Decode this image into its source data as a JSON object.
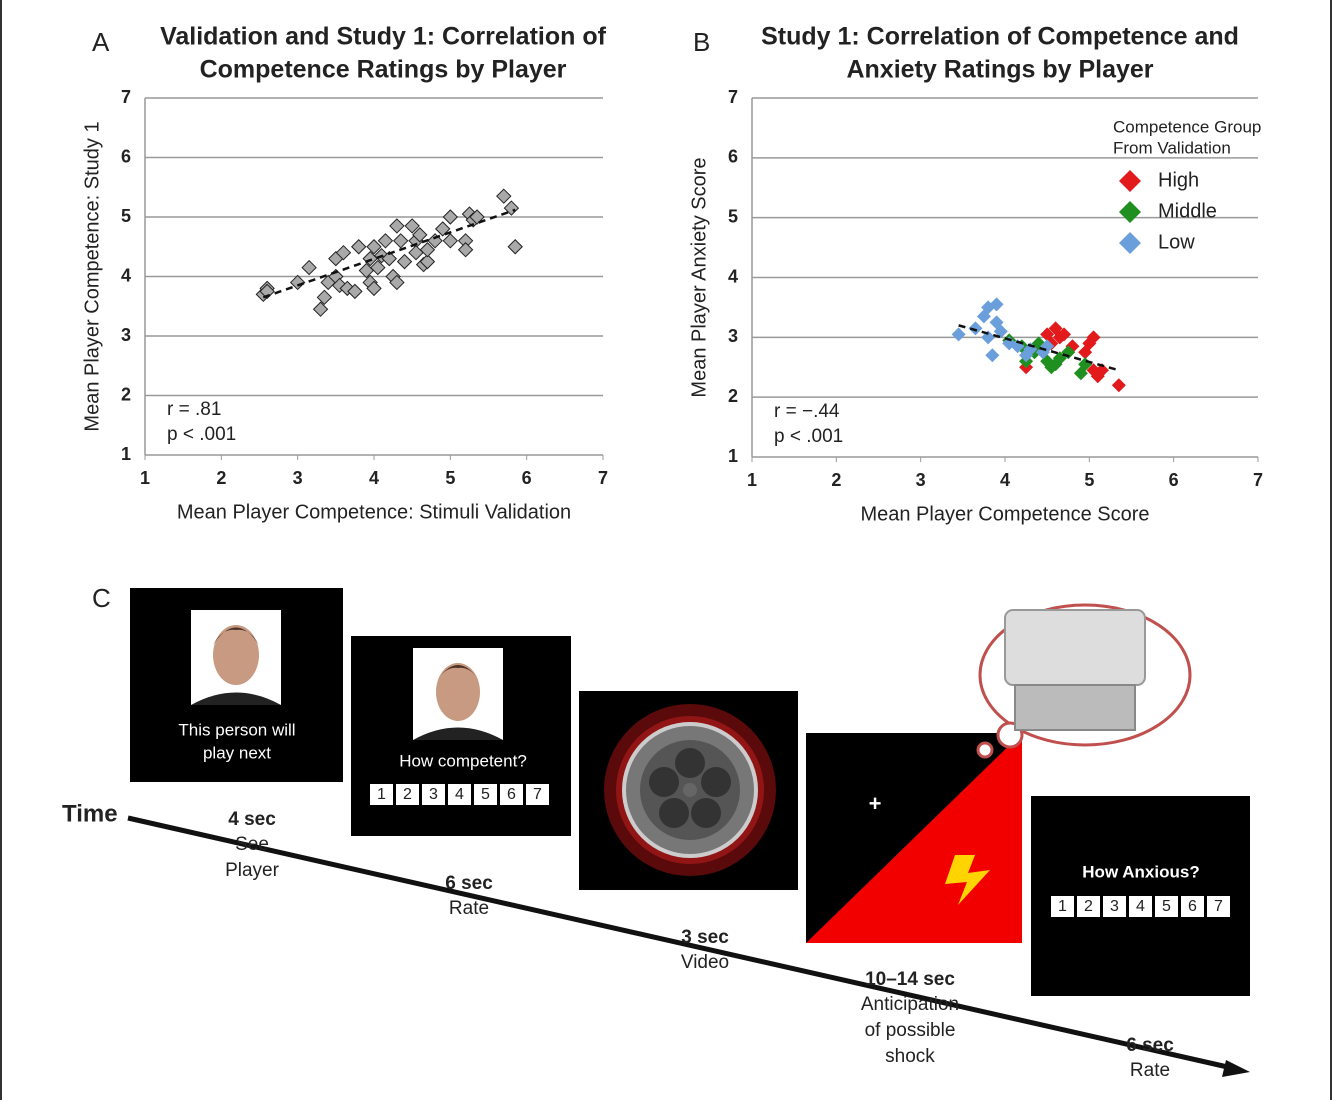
{
  "chart_data": [
    {
      "type": "scatter",
      "panel": "A",
      "title": [
        "Validation and Study 1: Correlation of",
        "Competence Ratings by Player"
      ],
      "xlabel": "Mean Player Competence: Stimuli Validation",
      "ylabel": "Mean Player Competence: Study 1",
      "xlim": [
        1,
        7
      ],
      "ylim": [
        1,
        7
      ],
      "xticks": [
        1,
        2,
        3,
        4,
        5,
        6,
        7
      ],
      "yticks": [
        1,
        2,
        3,
        4,
        5,
        6,
        7
      ],
      "grid": true,
      "color": "#a9a9a9",
      "x": [
        2.55,
        2.6,
        2.6,
        3.0,
        3.15,
        3.3,
        3.35,
        3.4,
        3.5,
        3.5,
        3.55,
        3.6,
        3.65,
        3.75,
        3.8,
        3.9,
        3.95,
        3.95,
        4.0,
        4.0,
        4.05,
        4.1,
        4.15,
        4.2,
        4.25,
        4.3,
        4.3,
        4.35,
        4.4,
        4.5,
        4.55,
        4.55,
        4.6,
        4.65,
        4.7,
        4.7,
        4.8,
        4.9,
        5.0,
        5.0,
        5.2,
        5.2,
        5.25,
        5.3,
        5.35,
        5.7,
        5.8,
        5.85
      ],
      "values": [
        3.7,
        3.8,
        3.75,
        3.9,
        4.15,
        3.45,
        3.65,
        3.9,
        4.0,
        4.3,
        3.85,
        4.4,
        3.8,
        3.75,
        4.5,
        4.1,
        4.3,
        3.9,
        4.5,
        3.8,
        4.15,
        4.35,
        4.6,
        4.3,
        4.0,
        4.85,
        3.9,
        4.6,
        4.25,
        4.85,
        4.6,
        4.4,
        4.7,
        4.2,
        4.25,
        4.45,
        4.6,
        4.8,
        5.0,
        4.6,
        4.6,
        4.45,
        5.05,
        4.95,
        5.0,
        5.35,
        5.15,
        4.5
      ],
      "trend": {
        "x": [
          2.55,
          5.85
        ],
        "y": [
          3.65,
          5.12
        ]
      },
      "annotations": [
        "r = .81",
        "p < .001"
      ]
    },
    {
      "type": "scatter",
      "panel": "B",
      "title": [
        "Study 1: Correlation of Competence and",
        "Anxiety Ratings by Player"
      ],
      "xlabel": "Mean Player Competence Score",
      "ylabel": "Mean Player Anxiety Score",
      "xlim": [
        1,
        7
      ],
      "ylim": [
        1,
        7
      ],
      "xticks": [
        1,
        2,
        3,
        4,
        5,
        6,
        7
      ],
      "yticks": [
        1,
        2,
        3,
        4,
        5,
        6,
        7
      ],
      "grid": true,
      "legend_title": [
        "Competence Group",
        "From Validation"
      ],
      "legend": "upper right",
      "series": [
        {
          "name": "High",
          "color": "#e31a1c",
          "x": [
            4.25,
            4.5,
            4.55,
            4.6,
            4.65,
            4.7,
            4.8,
            4.95,
            5.0,
            5.05,
            5.05,
            5.1,
            5.15,
            5.35
          ],
          "values": [
            2.5,
            3.05,
            2.9,
            3.15,
            3.0,
            3.05,
            2.85,
            2.75,
            2.9,
            3.0,
            2.45,
            2.35,
            2.45,
            2.2
          ]
        },
        {
          "name": "Middle",
          "color": "#1f8f1f",
          "x": [
            4.05,
            4.2,
            4.25,
            4.35,
            4.4,
            4.5,
            4.55,
            4.6,
            4.65,
            4.75,
            4.9,
            4.95
          ],
          "values": [
            2.95,
            2.85,
            2.6,
            2.75,
            2.9,
            2.6,
            2.5,
            2.55,
            2.65,
            2.75,
            2.4,
            2.55
          ]
        },
        {
          "name": "Low",
          "color": "#6a9fdc",
          "x": [
            3.45,
            3.65,
            3.75,
            3.8,
            3.8,
            3.9,
            3.9,
            3.85,
            3.95,
            4.05,
            4.15,
            4.25,
            4.3,
            4.5,
            4.45
          ],
          "values": [
            3.05,
            3.15,
            3.35,
            3.5,
            3.0,
            3.55,
            3.25,
            2.7,
            3.1,
            2.9,
            2.85,
            2.7,
            2.8,
            2.85,
            2.75
          ]
        }
      ],
      "trend": {
        "x": [
          3.45,
          5.35
        ],
        "y": [
          3.2,
          2.45
        ]
      },
      "annotations": [
        "r = −.44",
        "p < .001"
      ]
    }
  ],
  "diagram": {
    "panel": "C",
    "timeline_label": "Time",
    "fixation": "+",
    "screens": [
      {
        "text": [
          "This person will",
          "play next"
        ]
      },
      {
        "text": [
          "How competent?"
        ],
        "scale": [
          1,
          2,
          3,
          4,
          5,
          6,
          7
        ]
      },
      {
        "text": [
          "How Anxious?"
        ],
        "scale": [
          1,
          2,
          3,
          4,
          5,
          6,
          7
        ]
      }
    ],
    "steps": [
      {
        "duration": "4 sec",
        "desc": [
          "See",
          "Player"
        ]
      },
      {
        "duration": "6 sec",
        "desc": [
          "Rate"
        ]
      },
      {
        "duration": "3 sec",
        "desc": [
          "Video"
        ]
      },
      {
        "duration": "10–14 sec",
        "desc": [
          "Anticipation",
          "of possible",
          "shock"
        ]
      },
      {
        "duration": "6 sec",
        "desc": [
          "Rate"
        ]
      }
    ]
  }
}
